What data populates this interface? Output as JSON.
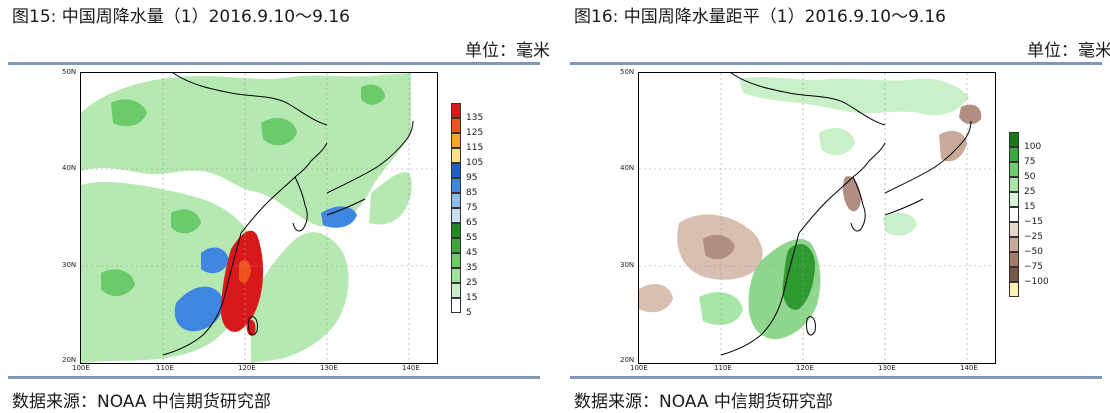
{
  "panels": [
    {
      "id": "left",
      "title": "图15: 中国周降水量（1）2016.9.10～9.16",
      "unit": "单位：毫米",
      "source": "数据来源：NOAA 中信期货研究部",
      "ticks": {
        "lat": [
          "50N",
          "40N",
          "30N",
          "20N"
        ],
        "lon": [
          "100E",
          "110E",
          "120E",
          "130E",
          "140E"
        ]
      },
      "colorbar": {
        "labels": [
          "135",
          "125",
          "115",
          "105",
          "95",
          "85",
          "75",
          "65",
          "55",
          "45",
          "35",
          "25",
          "15",
          "5"
        ],
        "colors": [
          "#d7191c",
          "#f0521b",
          "#f5a623",
          "#fbe08a",
          "#1e5fc8",
          "#3f86e2",
          "#8fbbee",
          "#c9def5",
          "#1f8a1f",
          "#3ea83e",
          "#6bcb6b",
          "#9ee29e",
          "#c9f0c9",
          "#ffffff"
        ]
      }
    },
    {
      "id": "right",
      "title": "图16: 中国周降水量距平（1）2016.9.10～9.16",
      "unit": "单位：毫米",
      "source": "数据来源：NOAA 中信期货研究部",
      "ticks": {
        "lat": [
          "50N",
          "40N",
          "30N",
          "20N"
        ],
        "lon": [
          "100E",
          "110E",
          "120E",
          "130E",
          "140E"
        ]
      },
      "colorbar": {
        "labels": [
          "100",
          "75",
          "50",
          "25",
          "15",
          "−15",
          "−25",
          "−50",
          "−75",
          "−100"
        ],
        "colors": [
          "#1a7a1a",
          "#3aa83a",
          "#6fcc6f",
          "#a8e6a8",
          "#d6f5d6",
          "#ffffff",
          "#e8d5cc",
          "#c9a99a",
          "#a47c6c",
          "#7a5648",
          "#fdf3b0"
        ]
      }
    }
  ]
}
